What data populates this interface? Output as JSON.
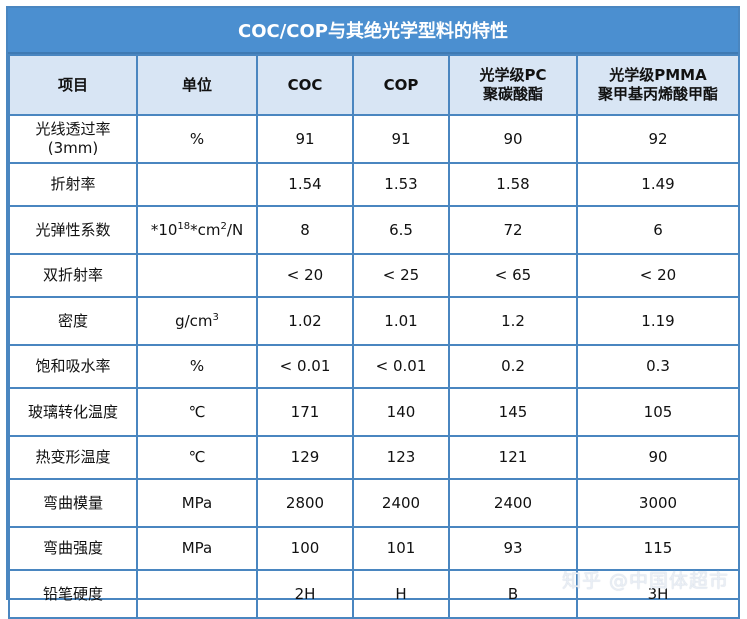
{
  "title": "COC/COP与其绝光学型料的特性",
  "headers": {
    "item": "项目",
    "unit": "单位",
    "coc": "COC",
    "cop": "COP",
    "pc_line1": "光学级PC",
    "pc_line2": "聚碳酸酯",
    "pmma_line1": "光学级PMMA",
    "pmma_line2": "聚甲基丙烯酸甲酯"
  },
  "rows": [
    {
      "name1": "光线透过率",
      "name2": "(3mm)",
      "unit": "%",
      "coc": "91",
      "cop": "91",
      "pc": "90",
      "pmma": "92"
    },
    {
      "name1": "折射率",
      "unit": "",
      "coc": "1.54",
      "cop": "1.53",
      "pc": "1.58",
      "pmma": "1.49"
    },
    {
      "name1": "光弹性系数",
      "unit_pre": "*10",
      "unit_sup": "18",
      "unit_mid": "*cm",
      "unit_sup2": "2",
      "unit_post": "/N",
      "coc": "8",
      "cop": "6.5",
      "pc": "72",
      "pmma": "6"
    },
    {
      "name1": "双折射率",
      "unit": "",
      "coc": "< 20",
      "cop": "< 25",
      "pc": "< 65",
      "pmma": "< 20"
    },
    {
      "name1": "密度",
      "unit_base": "g/cm",
      "unit_sup": "3",
      "coc": "1.02",
      "cop": "1.01",
      "pc": "1.2",
      "pmma": "1.19"
    },
    {
      "name1": "饱和吸水率",
      "unit": "%",
      "coc": "< 0.01",
      "cop": "< 0.01",
      "pc": "0.2",
      "pmma": "0.3"
    },
    {
      "name1": "玻璃转化温度",
      "unit": "℃",
      "coc": "171",
      "cop": "140",
      "pc": "145",
      "pmma": "105"
    },
    {
      "name1": "热变形温度",
      "unit": "℃",
      "coc": "129",
      "cop": "123",
      "pc": "121",
      "pmma": "90"
    },
    {
      "name1": "弯曲模量",
      "unit": "MPa",
      "coc": "2800",
      "cop": "2400",
      "pc": "2400",
      "pmma": "3000"
    },
    {
      "name1": "弯曲强度",
      "unit": "MPa",
      "coc": "100",
      "cop": "101",
      "pc": "93",
      "pmma": "115"
    },
    {
      "name1": "铅笔硬度",
      "unit": "",
      "coc": "2H",
      "cop": "H",
      "pc": "B",
      "pmma": "3H"
    }
  ],
  "watermark": "知乎 @中国体超市",
  "colors": {
    "header_blue": "#4b8fd0",
    "border_blue": "#4a86c0",
    "subheader_bg": "#d8e5f4"
  }
}
